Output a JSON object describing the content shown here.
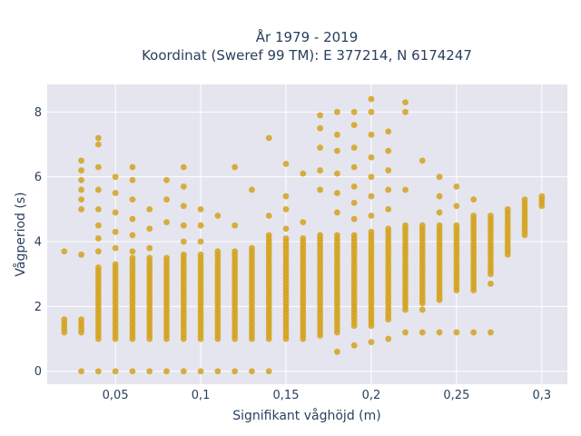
{
  "chart_data": {
    "type": "scatter",
    "title_lines": [
      "År 1979 - 2019",
      "Koordinat (Sweref 99 TM): E 377214, N 6174247"
    ],
    "xlabel": "Signifikant våghöjd (m)",
    "ylabel": "Vågperiod (s)",
    "xlim": [
      0.01,
      0.315
    ],
    "ylim": [
      -0.4,
      8.85
    ],
    "x_ticks": [
      0.05,
      0.1,
      0.15,
      0.2,
      0.25,
      0.3
    ],
    "x_tick_labels": [
      "0,05",
      "0,1",
      "0,15",
      "0,2",
      "0,25",
      "0,3"
    ],
    "y_ticks": [
      0,
      2,
      4,
      6,
      8
    ],
    "y_tick_labels": [
      "0",
      "2",
      "4",
      "6",
      "8"
    ],
    "grid": true,
    "legend": "none",
    "marker_color": "#d4a21c",
    "background_color": "#e5e5ef",
    "series": [
      {
        "columns": [
          {
            "x": 0.02,
            "band": [
              1.2,
              1.6
            ],
            "extra": [
              3.7
            ]
          },
          {
            "x": 0.03,
            "band": [
              1.2,
              1.6
            ],
            "extra": [
              0,
              3.6,
              5.0,
              5.3,
              5.6,
              5.9,
              6.2,
              6.5
            ]
          },
          {
            "x": 0.04,
            "band": [
              1.0,
              3.2
            ],
            "extra": [
              0,
              3.7,
              4.1,
              4.5,
              5.0,
              5.6,
              6.3,
              7.0,
              7.2
            ]
          },
          {
            "x": 0.05,
            "band": [
              1.0,
              3.3
            ],
            "extra": [
              0,
              3.8,
              4.3,
              4.9,
              5.5,
              6.0
            ]
          },
          {
            "x": 0.06,
            "band": [
              1.0,
              3.5
            ],
            "extra": [
              0,
              3.7,
              4.2,
              4.7,
              5.3,
              5.9,
              6.3
            ]
          },
          {
            "x": 0.07,
            "band": [
              1.0,
              3.5
            ],
            "extra": [
              0,
              3.8,
              4.4,
              5.0
            ]
          },
          {
            "x": 0.08,
            "band": [
              1.0,
              3.5
            ],
            "extra": [
              0,
              4.6,
              5.3,
              5.9
            ]
          },
          {
            "x": 0.09,
            "band": [
              1.0,
              3.6
            ],
            "extra": [
              0,
              4.0,
              4.5,
              5.1,
              5.7,
              6.3
            ]
          },
          {
            "x": 0.1,
            "band": [
              1.0,
              3.6
            ],
            "extra": [
              0,
              4.0,
              4.5,
              5.0
            ]
          },
          {
            "x": 0.11,
            "band": [
              1.0,
              3.7
            ],
            "extra": [
              0,
              4.8
            ]
          },
          {
            "x": 0.12,
            "band": [
              1.0,
              3.7
            ],
            "extra": [
              0,
              4.5,
              6.3
            ]
          },
          {
            "x": 0.13,
            "band": [
              1.0,
              3.8
            ],
            "extra": [
              0,
              5.6
            ]
          },
          {
            "x": 0.14,
            "band": [
              1.0,
              4.2
            ],
            "extra": [
              0,
              4.8,
              7.2
            ]
          },
          {
            "x": 0.15,
            "band": [
              1.0,
              4.1
            ],
            "extra": [
              4.4,
              5.0,
              5.4,
              6.4
            ]
          },
          {
            "x": 0.16,
            "band": [
              1.0,
              4.1
            ],
            "extra": [
              4.6,
              6.1
            ]
          },
          {
            "x": 0.17,
            "band": [
              1.1,
              4.2
            ],
            "extra": [
              5.6,
              6.2,
              6.9,
              7.5,
              7.9
            ]
          },
          {
            "x": 0.18,
            "band": [
              1.2,
              4.2
            ],
            "extra": [
              0.6,
              4.9,
              5.5,
              6.1,
              6.8,
              7.3,
              8.0
            ]
          },
          {
            "x": 0.19,
            "band": [
              1.4,
              4.2
            ],
            "extra": [
              0.8,
              4.7,
              5.2,
              5.7,
              6.3,
              6.9,
              7.6,
              8.0
            ]
          },
          {
            "x": 0.2,
            "band": [
              1.4,
              4.3
            ],
            "extra": [
              0.9,
              4.8,
              5.4,
              6.0,
              6.6,
              7.3,
              8.0,
              8.4
            ]
          },
          {
            "x": 0.21,
            "band": [
              1.6,
              4.4
            ],
            "extra": [
              1.0,
              5.0,
              5.6,
              6.2,
              6.8,
              7.4
            ]
          },
          {
            "x": 0.22,
            "band": [
              1.9,
              4.5
            ],
            "extra": [
              1.2,
              5.6,
              8.0,
              8.3
            ]
          },
          {
            "x": 0.23,
            "band": [
              2.1,
              4.5
            ],
            "extra": [
              1.2,
              1.9,
              6.5
            ]
          },
          {
            "x": 0.24,
            "band": [
              2.2,
              4.5
            ],
            "extra": [
              1.2,
              4.9,
              5.4,
              6.0
            ]
          },
          {
            "x": 0.25,
            "band": [
              2.5,
              4.5
            ],
            "extra": [
              1.2,
              5.1,
              5.7
            ]
          },
          {
            "x": 0.26,
            "band": [
              2.5,
              4.8
            ],
            "extra": [
              1.2,
              5.3
            ]
          },
          {
            "x": 0.27,
            "band": [
              3.0,
              4.8
            ],
            "extra": [
              1.2,
              2.7
            ]
          },
          {
            "x": 0.28,
            "band": [
              3.6,
              5.0
            ],
            "extra": []
          },
          {
            "x": 0.29,
            "band": [
              4.2,
              5.3
            ],
            "extra": []
          },
          {
            "x": 0.3,
            "band": [
              5.1,
              5.4
            ],
            "extra": []
          }
        ]
      }
    ]
  }
}
